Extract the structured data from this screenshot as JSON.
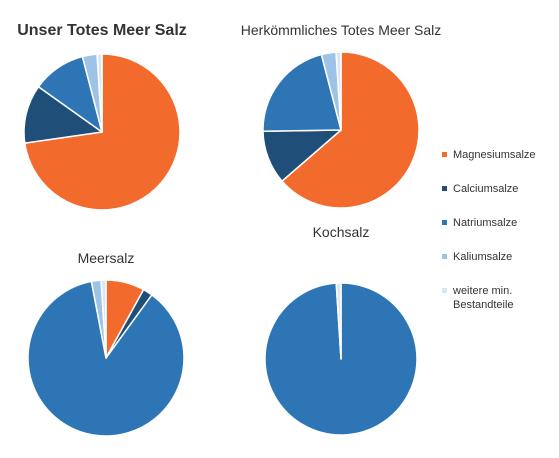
{
  "colors": {
    "magnesium": "#F26B2C",
    "calcium": "#1F4E79",
    "natrium": "#2E75B6",
    "kalium": "#9DC3E6",
    "weitere": "#DCE6F2"
  },
  "legend": [
    {
      "label": "Magnesiumsalze",
      "color_key": "magnesium"
    },
    {
      "label": "Calciumsalze",
      "color_key": "calcium"
    },
    {
      "label": "Natriumsalze",
      "color_key": "natrium"
    },
    {
      "label": "Kaliumsalze",
      "color_key": "kalium"
    },
    {
      "label": "weitere min. Bestandteile",
      "color_key": "weitere"
    }
  ],
  "chart_data": [
    {
      "type": "pie",
      "title": "Unser Totes Meer Salz",
      "categories": [
        "Magnesiumsalze",
        "Calciumsalze",
        "Natriumsalze",
        "Kaliumsalze",
        "weitere min. Bestandteile"
      ],
      "values": [
        72,
        12,
        11,
        3,
        1
      ]
    },
    {
      "type": "pie",
      "title": "Herkömmliches Totes Meer Salz",
      "categories": [
        "Magnesiumsalze",
        "Calciumsalze",
        "Natriumsalze",
        "Kaliumsalze",
        "weitere min. Bestandteile"
      ],
      "values": [
        63,
        11,
        21,
        3,
        1
      ]
    },
    {
      "type": "pie",
      "title": "Meersalz",
      "categories": [
        "Magnesiumsalze",
        "Calciumsalze",
        "Natriumsalze",
        "Kaliumsalze",
        "weitere min. Bestandteile"
      ],
      "values": [
        8,
        2,
        87,
        2,
        1
      ]
    },
    {
      "type": "pie",
      "title": "Kochsalz",
      "categories": [
        "Magnesiumsalze",
        "Calciumsalze",
        "Natriumsalze",
        "Kaliumsalze",
        "weitere min. Bestandteile"
      ],
      "values": [
        0,
        0,
        99,
        0,
        1
      ]
    }
  ]
}
